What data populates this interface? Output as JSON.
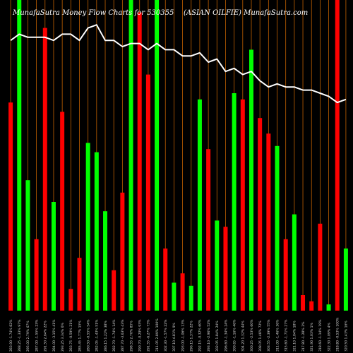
{
  "header": {
    "left": "MunafaSutra  Money Flow  Charts for 530355",
    "right": "(ASIAN  OILFIE) MunafaSutra.com"
  },
  "chart_data": {
    "type": "bar",
    "description_of_axes": "no numeric axes printed; x tick labels show price and percent change per session",
    "colors": {
      "up": "#00ff00",
      "down": "#ff0000",
      "grid": "#c06000",
      "line": "#ffffff",
      "background": "#000000"
    },
    "ylim": [
      0,
      100
    ],
    "categories": [
      "283.90 -1.74% 82%",
      "288.25 -1.33% 97%",
      "295.00 2.79% 67%",
      "287.00 -1.55% 23%",
      "291.50 2.64% 22%",
      "284.00 -3.15% 41%",
      "293.25 3.34% 6%",
      "283.75 -0.59% 21%",
      "285.45 1.77% 15%",
      "280.50 -0.55% 54%",
      "282.05 -1.43% 51%",
      "286.15 1.22% 38%",
      "282.70 -1.74% 14%",
      "287.70 -3.63% 43%",
      "298.55 2.70% 85%",
      "290.70 -0.29% 93%",
      "291.55 -6.27% 73%",
      "311.05 2.89% 100%",
      "302.30 -1.57% 22%",
      "307.10 4.81% 9%",
      "293.00 -1.06% 13%",
      "296.15 1.37% 22%",
      "292.15 -0.32% 60%",
      "293.10 -2.96% 52%",
      "302.05 1.84% 24%",
      "296.60 -1.34% 24%",
      "300.65 -1.16% 46%",
      "304.20 1.32% 44%",
      "300.25 -2.53% 60%",
      "308.05 1.48% 72%",
      "303.55 -2.39% 55%",
      "311.00 -1.46% 36%",
      "315.60 -1.71% 27%",
      "321.10 1.04% 18%",
      "317.80 -1.28% 2%",
      "321.90 1.03% 1%",
      "318.60 -1.14% 19%",
      "322.30 1.09% 4%",
      "318.80 -0.53% 100%",
      "320.50 1.43% 16%"
    ],
    "series": [
      {
        "values": [
          67,
          100,
          42,
          23,
          91,
          35,
          64,
          7,
          17,
          54,
          51,
          32,
          13,
          38,
          100,
          96,
          76,
          100,
          20,
          9,
          12,
          8,
          68,
          52,
          29,
          27,
          70,
          68,
          84,
          62,
          57,
          53,
          23,
          31,
          5,
          3,
          28,
          2,
          100,
          20
        ],
        "colors": [
          "down",
          "up",
          "up",
          "down",
          "down",
          "up",
          "down",
          "down",
          "down",
          "up",
          "up",
          "up",
          "down",
          "down",
          "up",
          "down",
          "down",
          "up",
          "down",
          "up",
          "down",
          "up",
          "up",
          "down",
          "up",
          "down",
          "up",
          "down",
          "up",
          "down",
          "down",
          "up",
          "down",
          "up",
          "down",
          "down",
          "down",
          "up",
          "down",
          "up"
        ]
      },
      {
        "type": "line",
        "values": [
          87,
          89,
          88,
          88,
          88,
          87,
          89,
          89,
          87,
          91,
          92,
          87,
          87,
          85,
          86,
          86,
          84,
          86,
          84,
          84,
          82,
          82,
          83,
          80,
          81,
          77,
          78,
          76,
          77,
          74,
          72,
          73,
          72,
          72,
          71,
          71,
          70,
          69,
          67,
          68
        ]
      }
    ]
  }
}
